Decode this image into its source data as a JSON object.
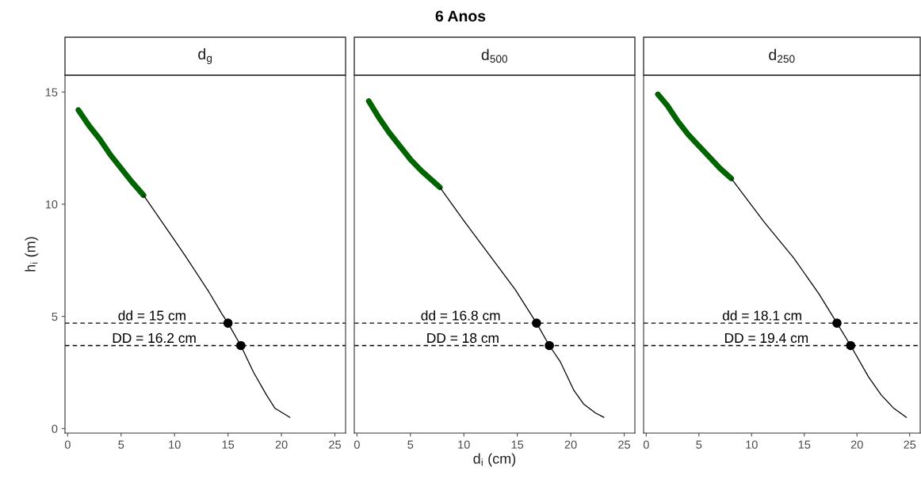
{
  "chart_data": [
    {
      "type": "line",
      "subtitle": "d$_{g}$",
      "ylabel": "h$_{i}$ (m)",
      "xlim": [
        -0.25,
        26
      ],
      "ylim": [
        -0.2,
        15.75
      ],
      "xticks": [
        0,
        5,
        10,
        15,
        20,
        25
      ],
      "yticks": [
        0,
        5,
        10,
        15
      ],
      "grid": false,
      "legend": false,
      "marker": "none",
      "line_style": "solid",
      "series": [
        {
          "color": "#006400",
          "x": [
            1.0,
            2.0,
            3.0,
            4.0,
            5.0,
            6.0,
            7.1
          ],
          "values": [
            14.2,
            13.5,
            12.9,
            12.2,
            11.6,
            11.0,
            10.4
          ]
        },
        {
          "color": "#000000",
          "x": [
            7.1,
            10.0,
            11.0,
            13.2,
            14.45,
            15.0,
            16.2,
            17.4,
            18.6,
            19.4,
            20.1,
            20.8
          ],
          "values": [
            10.4,
            8.4,
            7.7,
            6.1,
            5.1,
            4.7,
            3.7,
            2.5,
            1.5,
            0.9,
            0.7,
            0.5
          ]
        },
        {
          "type": "scatter",
          "marker": "circle",
          "color": "#000000",
          "x": [
            15,
            16.2
          ],
          "values": [
            4.7,
            3.7
          ]
        }
      ],
      "ref_lines": [
        {
          "axis": "y",
          "value": 4.7,
          "color": "#000000",
          "line_style": "dashed"
        },
        {
          "axis": "y",
          "value": 3.7,
          "color": "#000000",
          "line_style": "dashed"
        }
      ],
      "annotations": [
        {
          "text": "dd = 15 cm",
          "x": 7.9,
          "y": 4.7
        },
        {
          "text": "DD = 16.2 cm",
          "x": 8.1,
          "y": 3.7
        }
      ]
    },
    {
      "type": "line",
      "title": "6 Anos",
      "subtitle": "d$_{500}$",
      "xlabel": "d$_{i}$ (cm)",
      "xlim": [
        -0.25,
        26
      ],
      "ylim": [
        -0.2,
        15.75
      ],
      "xticks": [
        0,
        5,
        10,
        15,
        20,
        25
      ],
      "yticks": [
        0,
        5,
        10,
        15
      ],
      "tick_labels": "x",
      "grid": false,
      "legend": false,
      "marker": "none",
      "line_style": "solid",
      "series": [
        {
          "color": "#006400",
          "x": [
            1.1,
            2.0,
            3.0,
            4.0,
            5.0,
            6.0,
            7.76
          ],
          "values": [
            14.6,
            13.9,
            13.2,
            12.6,
            12.0,
            11.5,
            10.75
          ]
        },
        {
          "color": "#000000",
          "x": [
            7.76,
            10.1,
            12.3,
            14.8,
            16.8,
            18.0,
            19.0,
            20.3,
            21.2,
            22.3,
            23.1
          ],
          "values": [
            10.75,
            9.2,
            7.8,
            6.2,
            4.7,
            3.7,
            3.0,
            1.7,
            1.1,
            0.7,
            0.5
          ]
        },
        {
          "type": "scatter",
          "marker": "circle",
          "color": "#000000",
          "x": [
            16.8,
            18
          ],
          "values": [
            4.7,
            3.7
          ]
        }
      ],
      "ref_lines": [
        {
          "axis": "y",
          "value": 4.7,
          "color": "#000000",
          "line_style": "dashed"
        },
        {
          "axis": "y",
          "value": 3.7,
          "color": "#000000",
          "line_style": "dashed"
        }
      ],
      "annotations": [
        {
          "text": "dd = 16.8 cm",
          "x": 9.7,
          "y": 4.7
        },
        {
          "text": "DD = 18 cm",
          "x": 9.9,
          "y": 3.7
        }
      ]
    },
    {
      "type": "line",
      "subtitle": "d$_{250}$",
      "xlim": [
        -0.25,
        26
      ],
      "ylim": [
        -0.2,
        15.75
      ],
      "xticks": [
        0,
        5,
        10,
        15,
        20,
        25
      ],
      "yticks": [
        0,
        5,
        10,
        15
      ],
      "tick_labels": "x",
      "grid": false,
      "legend": false,
      "marker": "none",
      "line_style": "solid",
      "series": [
        {
          "color": "#006400",
          "x": [
            1.1,
            2.0,
            3.0,
            4.0,
            5.0,
            6.0,
            7.0,
            8.07
          ],
          "values": [
            14.9,
            14.4,
            13.7,
            13.1,
            12.6,
            12.1,
            11.6,
            11.15
          ]
        },
        {
          "color": "#000000",
          "x": [
            8.07,
            11.2,
            14.0,
            16.4,
            18.1,
            19.4,
            21.1,
            22.3,
            23.5,
            24.7
          ],
          "values": [
            11.15,
            9.2,
            7.6,
            6.0,
            4.7,
            3.7,
            2.3,
            1.5,
            0.9,
            0.5
          ]
        },
        {
          "type": "scatter",
          "marker": "circle",
          "color": "#000000",
          "x": [
            18.1,
            19.4
          ],
          "values": [
            4.7,
            3.7
          ]
        }
      ],
      "ref_lines": [
        {
          "axis": "y",
          "value": 4.7,
          "color": "#000000",
          "line_style": "dashed"
        },
        {
          "axis": "y",
          "value": 3.7,
          "color": "#000000",
          "line_style": "dashed"
        }
      ],
      "annotations": [
        {
          "text": "dd = 18.1 cm",
          "x": 11.0,
          "y": 4.7
        },
        {
          "text": "DD = 19.4 cm",
          "x": 11.4,
          "y": 3.7
        }
      ]
    }
  ]
}
